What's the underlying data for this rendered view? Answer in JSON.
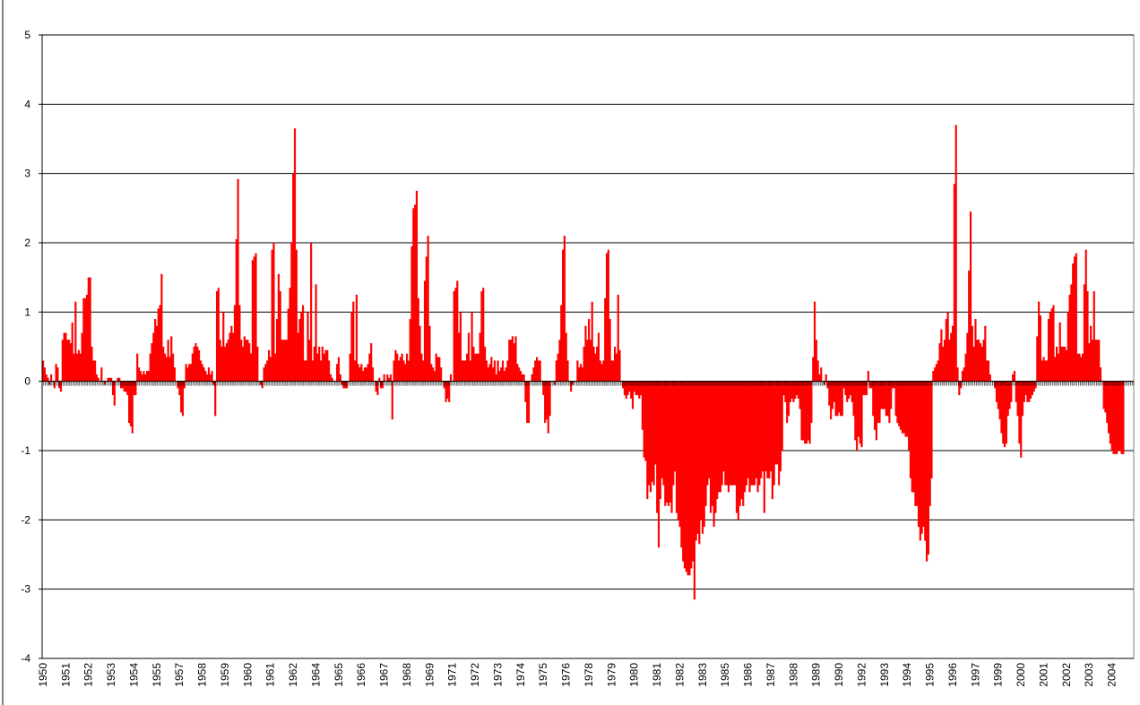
{
  "chart_data": {
    "type": "bar",
    "categories": [
      "1950",
      null,
      null,
      null,
      null,
      null,
      null,
      null,
      null,
      null,
      null,
      null,
      null,
      null,
      "1951",
      null,
      null,
      null,
      null,
      null,
      null,
      null,
      null,
      null,
      null,
      null,
      null,
      null,
      "1952",
      null,
      null,
      null,
      null,
      null,
      null,
      null,
      null,
      null,
      null,
      null,
      null,
      null,
      "1953",
      null,
      null,
      null,
      null,
      null,
      null,
      null,
      null,
      null,
      null,
      null,
      null,
      null,
      "1954",
      null,
      null,
      null,
      null,
      null,
      null,
      null,
      null,
      null,
      null,
      null,
      null,
      null,
      "1955",
      null,
      null,
      null,
      null,
      null,
      null,
      null,
      null,
      null,
      null,
      null,
      null,
      null,
      "1957",
      null,
      null,
      null,
      null,
      null,
      null,
      null,
      null,
      null,
      null,
      null,
      null,
      null,
      "1958",
      null,
      null,
      null,
      null,
      null,
      null,
      null,
      null,
      null,
      null,
      null,
      null,
      null,
      "1959",
      null,
      null,
      null,
      null,
      null,
      null,
      null,
      null,
      null,
      null,
      null,
      null,
      null,
      "1960",
      null,
      null,
      null,
      null,
      null,
      null,
      null,
      null,
      null,
      null,
      null,
      null,
      null,
      "1961",
      null,
      null,
      null,
      null,
      null,
      null,
      null,
      null,
      null,
      null,
      null,
      null,
      null,
      "1962",
      null,
      null,
      null,
      null,
      null,
      null,
      null,
      null,
      null,
      null,
      null,
      null,
      null,
      "1964",
      null,
      null,
      null,
      null,
      null,
      null,
      null,
      null,
      null,
      null,
      null,
      null,
      null,
      "1965",
      null,
      null,
      null,
      null,
      null,
      null,
      null,
      null,
      null,
      null,
      null,
      null,
      null,
      "1966",
      null,
      null,
      null,
      null,
      null,
      null,
      null,
      null,
      null,
      null,
      null,
      null,
      null,
      "1967",
      null,
      null,
      null,
      null,
      null,
      null,
      null,
      null,
      null,
      null,
      null,
      null,
      null,
      "1968",
      null,
      null,
      null,
      null,
      null,
      null,
      null,
      null,
      null,
      null,
      null,
      null,
      null,
      "1969",
      null,
      null,
      null,
      null,
      null,
      null,
      null,
      null,
      null,
      null,
      null,
      null,
      null,
      "1971",
      null,
      null,
      null,
      null,
      null,
      null,
      null,
      null,
      null,
      null,
      null,
      null,
      null,
      "1972",
      null,
      null,
      null,
      null,
      null,
      null,
      null,
      null,
      null,
      null,
      null,
      null,
      null,
      "1973",
      null,
      null,
      null,
      null,
      null,
      null,
      null,
      null,
      null,
      null,
      null,
      null,
      null,
      "1974",
      null,
      null,
      null,
      null,
      null,
      null,
      null,
      null,
      null,
      null,
      null,
      null,
      null,
      "1975",
      null,
      null,
      null,
      null,
      null,
      null,
      null,
      null,
      null,
      null,
      null,
      null,
      null,
      "1976",
      null,
      null,
      null,
      null,
      null,
      null,
      null,
      null,
      null,
      null,
      null,
      null,
      null,
      "1978",
      null,
      null,
      null,
      null,
      null,
      null,
      null,
      null,
      null,
      null,
      null,
      null,
      null,
      "1979",
      null,
      null,
      null,
      null,
      null,
      null,
      null,
      null,
      null,
      null,
      null,
      null,
      null,
      "1980",
      null,
      null,
      null,
      null,
      null,
      null,
      null,
      null,
      null,
      null,
      null,
      null,
      null,
      "1981",
      null,
      null,
      null,
      null,
      null,
      null,
      null,
      null,
      null,
      null,
      null,
      null,
      null,
      "1982",
      null,
      null,
      null,
      null,
      null,
      null,
      null,
      null,
      null,
      null,
      null,
      null,
      null,
      "1983",
      null,
      null,
      null,
      null,
      null,
      null,
      null,
      null,
      null,
      null,
      null,
      null,
      null,
      "1985",
      null,
      null,
      null,
      null,
      null,
      null,
      null,
      null,
      null,
      null,
      null,
      null,
      null,
      "1986",
      null,
      null,
      null,
      null,
      null,
      null,
      null,
      null,
      null,
      null,
      null,
      null,
      null,
      "1987",
      null,
      null,
      null,
      null,
      null,
      null,
      null,
      null,
      null,
      null,
      null,
      null,
      null,
      "1988",
      null,
      null,
      null,
      null,
      null,
      null,
      null,
      null,
      null,
      null,
      null,
      null,
      null,
      "1989",
      null,
      null,
      null,
      null,
      null,
      null,
      null,
      null,
      null,
      null,
      null,
      null,
      null,
      "1990",
      null,
      null,
      null,
      null,
      null,
      null,
      null,
      null,
      null,
      null,
      null,
      null,
      null,
      "1992",
      null,
      null,
      null,
      null,
      null,
      null,
      null,
      null,
      null,
      null,
      null,
      null,
      null,
      "1993",
      null,
      null,
      null,
      null,
      null,
      null,
      null,
      null,
      null,
      null,
      null,
      null,
      null,
      "1994",
      null,
      null,
      null,
      null,
      null,
      null,
      null,
      null,
      null,
      null,
      null,
      null,
      null,
      "1995",
      null,
      null,
      null,
      null,
      null,
      null,
      null,
      null,
      null,
      null,
      null,
      null,
      null,
      "1996",
      null,
      null,
      null,
      null,
      null,
      null,
      null,
      null,
      null,
      null,
      null,
      null,
      null,
      "1997",
      null,
      null,
      null,
      null,
      null,
      null,
      null,
      null,
      null,
      null,
      null,
      null,
      null,
      "1999",
      null,
      null,
      null,
      null,
      null,
      null,
      null,
      null,
      null,
      null,
      null,
      null,
      null,
      "2000",
      null,
      null,
      null,
      null,
      null,
      null,
      null,
      null,
      null,
      null,
      null,
      null,
      null,
      "2001",
      null,
      null,
      null,
      null,
      null,
      null,
      null,
      null,
      null,
      null,
      null,
      null,
      null,
      "2002",
      null,
      null,
      null,
      null,
      null,
      null,
      null,
      null,
      null,
      null,
      null,
      null,
      null,
      "2003",
      null,
      null,
      null,
      null,
      null,
      null,
      null,
      null,
      null,
      null,
      null,
      null,
      null,
      "2004",
      null,
      null,
      null,
      null,
      null,
      null,
      null,
      null,
      null,
      null,
      null,
      null,
      null
    ],
    "values": [
      0.3,
      0.2,
      0.1,
      0.05,
      -0.05,
      0.1,
      0.0,
      -0.1,
      0.25,
      0.2,
      -0.1,
      -0.15,
      0.6,
      0.7,
      0.7,
      0.6,
      0.6,
      0.55,
      0.85,
      0.4,
      1.15,
      0.4,
      0.45,
      0.4,
      0.7,
      1.2,
      1.2,
      1.25,
      1.5,
      1.5,
      0.5,
      0.3,
      0.3,
      0.1,
      0.05,
      0.0,
      0.2,
      0.0,
      -0.05,
      0.0,
      0.05,
      0.05,
      0.05,
      -0.2,
      -0.35,
      0.0,
      0.05,
      0.05,
      -0.1,
      -0.1,
      -0.15,
      -0.15,
      -0.2,
      -0.6,
      -0.65,
      -0.75,
      -0.2,
      -0.2,
      0.4,
      0.2,
      0.15,
      0.1,
      0.15,
      0.1,
      0.15,
      0.15,
      0.4,
      0.55,
      0.7,
      0.9,
      0.8,
      1.05,
      1.1,
      1.55,
      0.5,
      0.4,
      0.35,
      0.6,
      0.35,
      0.65,
      0.4,
      0.2,
      0.0,
      -0.1,
      -0.2,
      -0.45,
      -0.5,
      -0.1,
      0.25,
      0.2,
      0.25,
      0.25,
      0.4,
      0.5,
      0.55,
      0.5,
      0.45,
      0.3,
      0.25,
      0.2,
      0.15,
      0.1,
      0.2,
      0.1,
      0.15,
      -0.05,
      -0.5,
      1.3,
      1.35,
      0.6,
      0.5,
      1.0,
      0.5,
      0.55,
      0.6,
      0.7,
      0.8,
      0.7,
      1.1,
      2.05,
      2.92,
      1.1,
      0.6,
      0.5,
      0.65,
      0.6,
      0.6,
      0.55,
      0.4,
      1.75,
      1.8,
      1.85,
      0.5,
      0.0,
      -0.05,
      -0.1,
      0.2,
      0.25,
      0.3,
      0.45,
      0.35,
      1.9,
      2.0,
      0.4,
      0.9,
      1.55,
      1.3,
      0.6,
      0.6,
      0.6,
      0.6,
      1.05,
      1.35,
      2.0,
      3.0,
      3.65,
      1.9,
      0.7,
      0.9,
      1.0,
      1.1,
      0.3,
      0.3,
      1.0,
      0.6,
      2.0,
      0.3,
      0.5,
      1.4,
      0.4,
      0.5,
      0.3,
      0.5,
      0.4,
      0.45,
      0.45,
      0.3,
      0.1,
      0.05,
      0.0,
      0.0,
      0.25,
      0.35,
      0.1,
      -0.05,
      -0.1,
      -0.1,
      -0.1,
      0.0,
      0.4,
      1.0,
      1.15,
      0.3,
      1.25,
      0.25,
      0.2,
      0.25,
      0.15,
      0.2,
      0.2,
      0.25,
      0.4,
      0.55,
      0.2,
      0.0,
      -0.15,
      -0.2,
      0.05,
      -0.1,
      -0.1,
      0.1,
      0.0,
      0.1,
      0.05,
      0.1,
      -0.55,
      0.3,
      0.45,
      0.4,
      0.3,
      0.35,
      0.4,
      0.3,
      0.25,
      0.4,
      0.3,
      0.9,
      1.95,
      2.5,
      2.55,
      2.75,
      1.2,
      0.8,
      0.4,
      0.3,
      1.45,
      1.8,
      2.1,
      0.8,
      0.25,
      0.2,
      0.15,
      0.4,
      0.35,
      0.35,
      0.2,
      0.0,
      -0.1,
      -0.3,
      -0.25,
      -0.3,
      0.1,
      0.0,
      1.3,
      1.35,
      1.45,
      0.7,
      1.0,
      0.3,
      0.3,
      0.3,
      0.4,
      0.7,
      0.3,
      1.0,
      0.5,
      0.4,
      0.4,
      0.4,
      0.7,
      1.3,
      1.35,
      0.5,
      0.3,
      0.2,
      0.25,
      0.35,
      0.2,
      0.3,
      0.1,
      0.3,
      0.15,
      0.2,
      0.3,
      0.15,
      0.2,
      0.3,
      0.6,
      0.6,
      0.65,
      0.55,
      0.65,
      0.25,
      0.2,
      0.15,
      0.1,
      0.1,
      -0.3,
      -0.6,
      -0.6,
      0.0,
      0.1,
      0.2,
      0.3,
      0.35,
      0.3,
      0.3,
      0.0,
      -0.2,
      -0.6,
      -0.55,
      -0.75,
      -0.5,
      0.0,
      0.0,
      -0.05,
      0.3,
      0.4,
      0.6,
      1.1,
      1.9,
      2.1,
      0.7,
      0.3,
      0.0,
      -0.15,
      -0.05,
      0.0,
      0.0,
      0.3,
      0.2,
      0.25,
      0.2,
      0.5,
      0.8,
      0.6,
      0.9,
      0.6,
      1.15,
      0.5,
      0.4,
      0.5,
      0.7,
      0.3,
      0.25,
      0.3,
      1.2,
      1.85,
      1.9,
      0.9,
      0.3,
      0.3,
      0.5,
      0.4,
      1.25,
      0.45,
      0.0,
      -0.1,
      -0.2,
      -0.25,
      -0.2,
      -0.15,
      -0.25,
      -0.4,
      -0.15,
      -0.2,
      -0.2,
      -0.25,
      -0.2,
      -0.7,
      -1.1,
      -1.15,
      -1.7,
      -1.5,
      -1.6,
      -1.45,
      -1.5,
      -1.2,
      -1.9,
      -2.4,
      -1.7,
      -1.4,
      -1.5,
      -1.8,
      -1.75,
      -1.8,
      -1.75,
      -1.9,
      -1.5,
      -1.3,
      -1.9,
      -2.0,
      -2.1,
      -2.4,
      -2.6,
      -2.7,
      -2.75,
      -2.8,
      -2.8,
      -2.7,
      -2.6,
      -3.15,
      -2.3,
      -2.2,
      -2.35,
      -2.0,
      -2.2,
      -2.1,
      -1.8,
      -1.5,
      -1.4,
      -1.9,
      -1.8,
      -2.1,
      -1.9,
      -1.7,
      -1.6,
      -1.6,
      -1.5,
      -1.3,
      -1.5,
      -1.5,
      -1.6,
      -1.5,
      -1.5,
      -1.5,
      -1.5,
      -1.9,
      -2.0,
      -1.8,
      -1.7,
      -1.8,
      -1.6,
      -1.5,
      -1.4,
      -1.6,
      -1.5,
      -1.5,
      -1.5,
      -1.4,
      -1.6,
      -1.5,
      -1.4,
      -1.3,
      -1.9,
      -1.3,
      -1.4,
      -1.4,
      -1.3,
      -1.7,
      -1.5,
      -1.2,
      -1.2,
      -1.5,
      -1.3,
      -1.0,
      -0.2,
      -0.3,
      -0.6,
      -0.5,
      -0.3,
      -0.25,
      -0.3,
      -0.25,
      -0.2,
      -0.25,
      -0.4,
      -0.85,
      -0.85,
      -0.9,
      -0.9,
      -0.85,
      -0.9,
      -0.6,
      0.35,
      1.15,
      0.6,
      0.3,
      0.1,
      0.2,
      0.0,
      -0.05,
      0.1,
      -0.1,
      -0.35,
      -0.55,
      -0.4,
      -0.3,
      -0.5,
      -0.5,
      -0.45,
      -0.5,
      -0.5,
      -0.1,
      -0.2,
      -0.3,
      -0.25,
      -0.2,
      -0.3,
      -0.5,
      -0.85,
      -1.0,
      -0.8,
      -0.9,
      -0.95,
      -0.2,
      -0.2,
      -0.2,
      0.15,
      -0.1,
      -0.1,
      -0.5,
      -0.7,
      -0.85,
      -0.6,
      -0.6,
      -0.4,
      -0.4,
      -0.4,
      -0.5,
      -0.5,
      -0.6,
      -0.4,
      -0.1,
      -0.1,
      -0.5,
      -0.6,
      -0.65,
      -0.7,
      -0.75,
      -0.75,
      -0.8,
      -0.8,
      -1.0,
      -1.4,
      -1.6,
      -1.6,
      -1.8,
      -1.8,
      -2.1,
      -2.3,
      -2.2,
      -2.1,
      -2.3,
      -2.6,
      -2.5,
      -1.8,
      -1.4,
      0.15,
      0.2,
      0.25,
      0.3,
      0.55,
      0.75,
      0.5,
      0.6,
      0.9,
      1.0,
      0.6,
      0.7,
      0.8,
      2.85,
      3.7,
      0.2,
      -0.2,
      -0.1,
      0.15,
      0.2,
      0.4,
      0.7,
      1.6,
      2.45,
      0.8,
      0.5,
      0.9,
      0.6,
      0.6,
      0.55,
      0.5,
      0.6,
      0.8,
      0.3,
      0.3,
      0.1,
      0.0,
      0.0,
      -0.1,
      -0.3,
      -0.4,
      -0.55,
      -0.75,
      -0.9,
      -0.95,
      -0.9,
      -0.5,
      -0.4,
      -0.3,
      0.1,
      0.15,
      -0.3,
      -0.5,
      -0.9,
      -1.1,
      -0.5,
      -0.3,
      -0.2,
      -0.3,
      -0.3,
      -0.25,
      -0.2,
      -0.15,
      -0.1,
      0.65,
      1.15,
      0.95,
      0.3,
      0.35,
      0.3,
      0.3,
      0.9,
      1.0,
      1.05,
      1.1,
      0.35,
      0.5,
      0.4,
      0.85,
      0.5,
      0.5,
      0.5,
      0.45,
      1.0,
      1.25,
      1.4,
      1.7,
      1.8,
      1.85,
      0.4,
      0.4,
      0.35,
      0.4,
      1.4,
      1.9,
      1.3,
      0.55,
      0.8,
      0.6,
      1.3,
      0.6,
      0.6,
      0.6,
      0.2,
      0.0,
      -0.4,
      -0.45,
      -0.6,
      -0.75,
      -0.9,
      -1.0,
      -1.05,
      -1.05,
      -1.05,
      -1.0,
      -1.0,
      -1.05,
      -1.05,
      null,
      null,
      null,
      null,
      null,
      null
    ],
    "color": "#ff0000",
    "ylim": [
      -4,
      5
    ],
    "yticks": [
      -4,
      -3,
      -2,
      -1,
      0,
      1,
      2,
      3,
      4,
      5
    ],
    "grid": true
  }
}
